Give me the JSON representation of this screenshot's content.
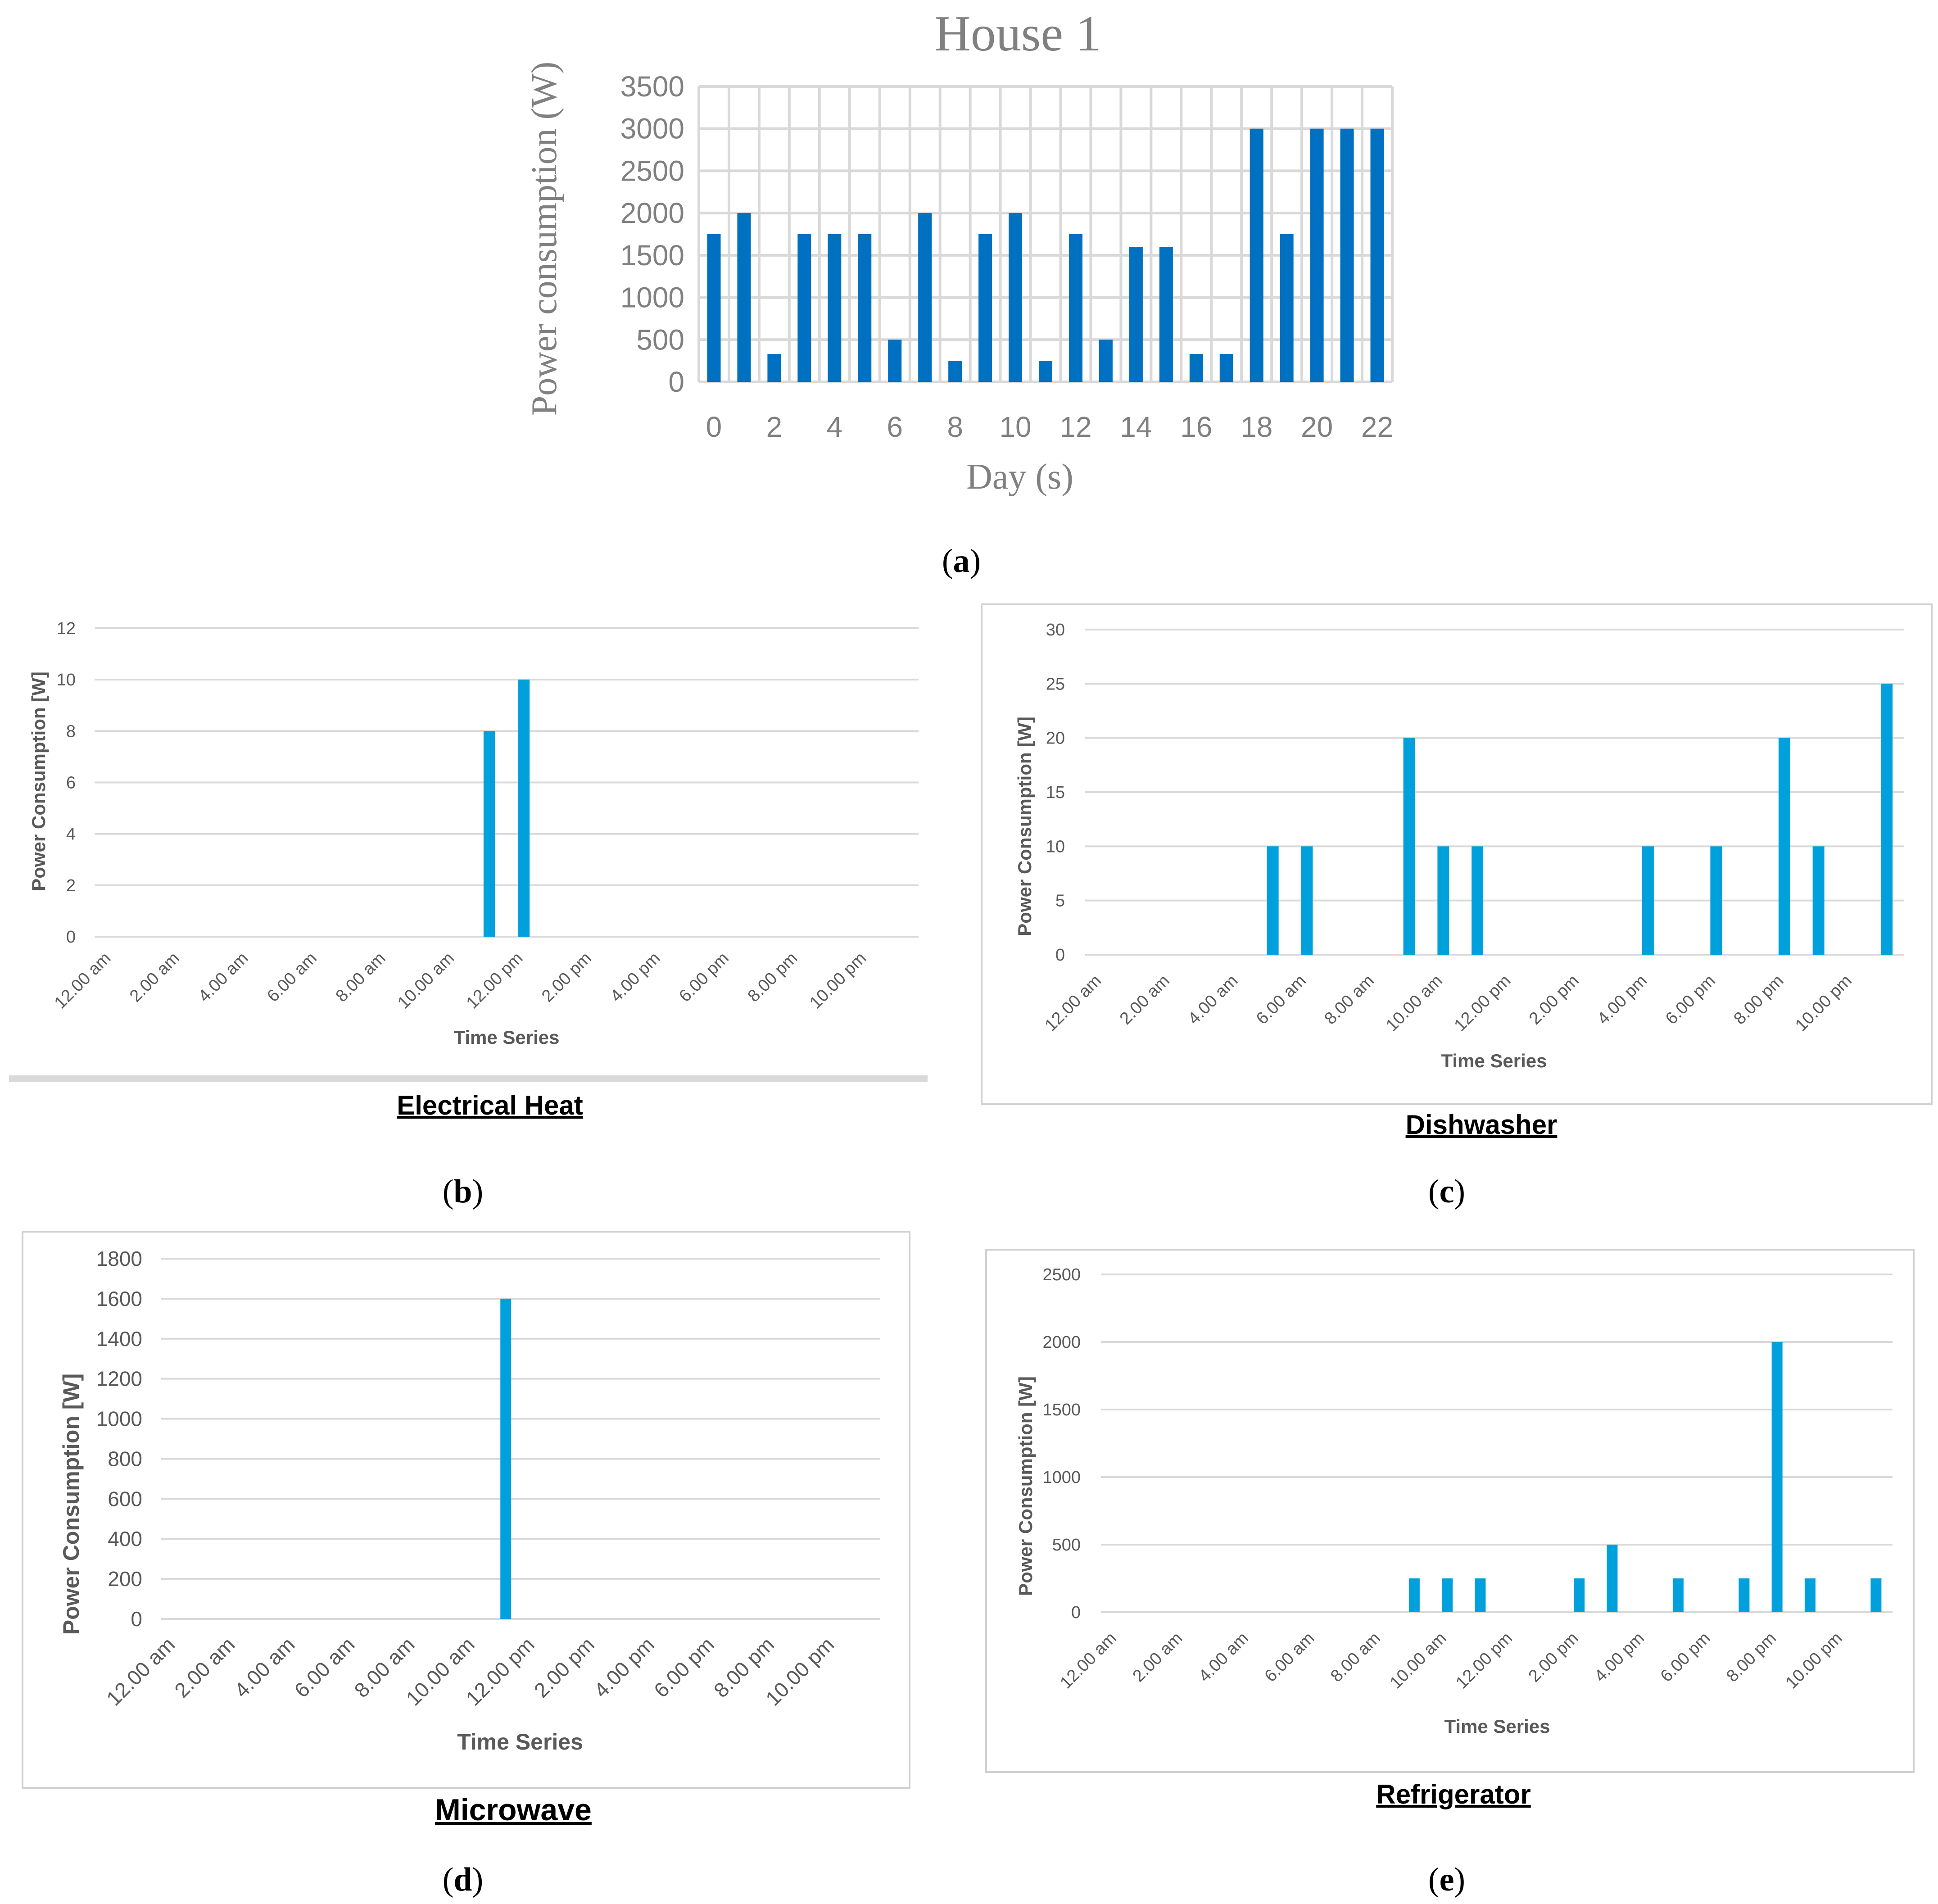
{
  "colors": {
    "house_bar": "#0070c0",
    "appliance_bar": "#00a0dc",
    "grid": "#d9d9d9",
    "text_gray": "#808080",
    "text_dark": "#595959"
  },
  "chart_data": [
    {
      "id": "a",
      "type": "bar",
      "title": "House 1",
      "xlabel": "Day (s)",
      "ylabel": "Power consumption (W)",
      "ylim": [
        0,
        3500
      ],
      "yticks": [
        "0",
        "500",
        "1000",
        "1500",
        "2000",
        "2500",
        "3000",
        "3500"
      ],
      "xtick_labels": [
        "0",
        "2",
        "4",
        "6",
        "8",
        "10",
        "12",
        "14",
        "16",
        "18",
        "20",
        "22"
      ],
      "x": [
        0,
        1,
        2,
        3,
        4,
        5,
        6,
        7,
        8,
        9,
        10,
        11,
        12,
        13,
        14,
        15,
        16,
        17,
        18,
        19,
        20,
        21,
        22
      ],
      "values": [
        1750,
        2000,
        330,
        1750,
        1750,
        1750,
        500,
        2000,
        250,
        1750,
        2000,
        250,
        1750,
        500,
        1600,
        1600,
        330,
        330,
        3000,
        1750,
        3000,
        3000,
        3000
      ],
      "grid": true,
      "panel_label": "a"
    },
    {
      "id": "b",
      "type": "bar",
      "caption": "Electrical Heat",
      "xlabel": "Time Series",
      "ylabel": "Power Consumption [W]",
      "ylim": [
        0,
        12
      ],
      "yticks": [
        "0",
        "2",
        "4",
        "6",
        "8",
        "10",
        "12"
      ],
      "categories": [
        "12.00 am",
        "2.00 am",
        "4.00 am",
        "6.00 am",
        "8.00 am",
        "10.00 am",
        "12.00 pm",
        "2.00 pm",
        "4.00 pm",
        "6.00 pm",
        "8.00 pm",
        "10.00 pm"
      ],
      "slots": 24,
      "bars": [
        {
          "slot": 11,
          "value": 8
        },
        {
          "slot": 12,
          "value": 10
        }
      ],
      "panel_label": "b"
    },
    {
      "id": "c",
      "type": "bar",
      "caption": "Dishwasher",
      "xlabel": "Time Series",
      "ylabel": "Power Consumption [W]",
      "ylim": [
        0,
        30
      ],
      "yticks": [
        "0",
        "5",
        "10",
        "15",
        "20",
        "25",
        "30"
      ],
      "categories": [
        "12.00 am",
        "2.00 am",
        "4.00 am",
        "6.00 am",
        "8.00 am",
        "10.00 am",
        "12.00 pm",
        "2.00 pm",
        "4.00 pm",
        "6.00 pm",
        "8.00 pm",
        "10.00 pm"
      ],
      "slots": 24,
      "bars": [
        {
          "slot": 5,
          "value": 10
        },
        {
          "slot": 6,
          "value": 10
        },
        {
          "slot": 9,
          "value": 20
        },
        {
          "slot": 10,
          "value": 10
        },
        {
          "slot": 11,
          "value": 10
        },
        {
          "slot": 16,
          "value": 10
        },
        {
          "slot": 18,
          "value": 10
        },
        {
          "slot": 20,
          "value": 20
        },
        {
          "slot": 21,
          "value": 10
        },
        {
          "slot": 23,
          "value": 25
        }
      ],
      "panel_label": "c"
    },
    {
      "id": "d",
      "type": "bar",
      "caption": "Microwave",
      "xlabel": "Time Series",
      "ylabel": "Power Consumption [W]",
      "ylim": [
        0,
        1800
      ],
      "yticks": [
        "0",
        "200",
        "400",
        "600",
        "800",
        "1000",
        "1200",
        "1400",
        "1600",
        "1800"
      ],
      "categories": [
        "12.00 am",
        "2.00 am",
        "4.00 am",
        "6.00 am",
        "8.00 am",
        "10.00 am",
        "12.00 pm",
        "2.00 pm",
        "4.00 pm",
        "6.00 pm",
        "8.00 pm",
        "10.00 pm"
      ],
      "slots": 24,
      "bars": [
        {
          "slot": 11,
          "value": 1600
        }
      ],
      "panel_label": "d"
    },
    {
      "id": "e",
      "type": "bar",
      "caption": "Refrigerator",
      "xlabel": "Time Series",
      "ylabel": "Power Consumption [W]",
      "ylim": [
        0,
        2500
      ],
      "yticks": [
        "0",
        "500",
        "1000",
        "1500",
        "2000",
        "2500"
      ],
      "categories": [
        "12.00 am",
        "2.00 am",
        "4.00 am",
        "6.00 am",
        "8.00 am",
        "10.00 am",
        "12.00 pm",
        "2.00 pm",
        "4.00 pm",
        "6.00 pm",
        "8.00 pm",
        "10.00 pm"
      ],
      "slots": 24,
      "bars": [
        {
          "slot": 9,
          "value": 250
        },
        {
          "slot": 10,
          "value": 250
        },
        {
          "slot": 11,
          "value": 250
        },
        {
          "slot": 14,
          "value": 250
        },
        {
          "slot": 15,
          "value": 500
        },
        {
          "slot": 17,
          "value": 250
        },
        {
          "slot": 19,
          "value": 250
        },
        {
          "slot": 20,
          "value": 2000
        },
        {
          "slot": 21,
          "value": 250
        },
        {
          "slot": 23,
          "value": 250
        }
      ],
      "panel_label": "e"
    }
  ]
}
